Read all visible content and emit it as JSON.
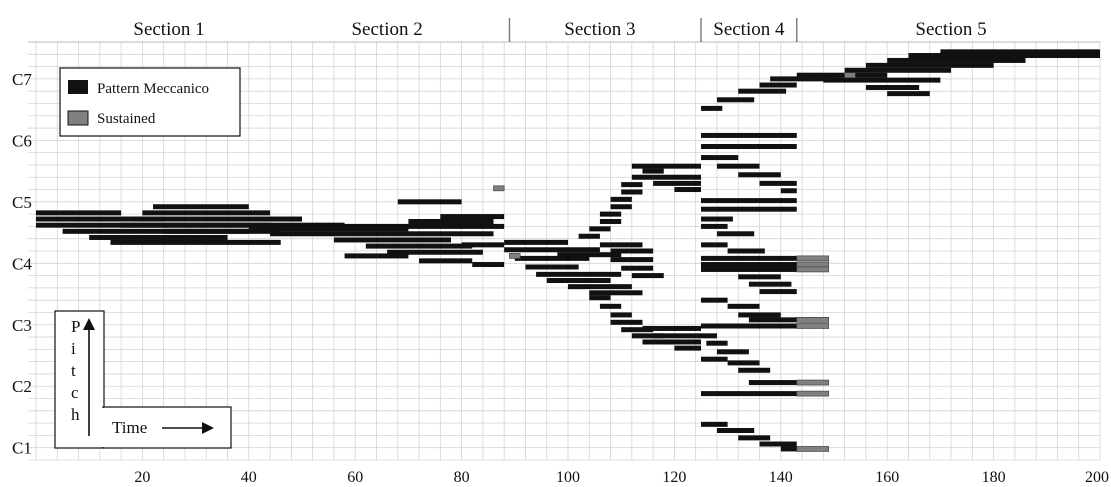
{
  "chart_data": {
    "type": "heatmap",
    "title": "",
    "xlabel": "Time",
    "ylabel": "Pitch",
    "xlim": [
      0,
      200
    ],
    "ylim": [
      0.8,
      7.6
    ],
    "x_ticks": [
      20,
      40,
      60,
      80,
      100,
      120,
      140,
      160,
      180,
      200
    ],
    "y_ticks": [
      {
        "label": "C1",
        "value": 1
      },
      {
        "label": "C2",
        "value": 2
      },
      {
        "label": "C3",
        "value": 3
      },
      {
        "label": "C4",
        "value": 4
      },
      {
        "label": "C5",
        "value": 5
      },
      {
        "label": "C6",
        "value": 6
      },
      {
        "label": "C7",
        "value": 7
      }
    ],
    "sections": [
      {
        "label": "Section 1",
        "start": 0,
        "end": 88
      },
      {
        "label": "Section 2",
        "start": 88,
        "end": 89
      },
      {
        "label": "Section 3",
        "start": 89,
        "end": 125
      },
      {
        "label": "Section 4",
        "start": 125,
        "end": 143
      },
      {
        "label": "Section 5",
        "start": 143,
        "end": 200
      }
    ],
    "grid": true,
    "legend": {
      "position": "top-left",
      "entries": [
        {
          "label": "Pattern Meccanico",
          "color": "#111111"
        },
        {
          "label": "Sustained",
          "color": "#808080"
        }
      ]
    },
    "series": [
      {
        "name": "Pattern Meccanico",
        "color": "#111111",
        "segments": [
          [
            0,
            16,
            4.82
          ],
          [
            0,
            24,
            4.72
          ],
          [
            0,
            30,
            4.62
          ],
          [
            5,
            40,
            4.52
          ],
          [
            10,
            36,
            4.42
          ],
          [
            14,
            46,
            4.34
          ],
          [
            16,
            44,
            4.62
          ],
          [
            18,
            50,
            4.72
          ],
          [
            20,
            44,
            4.82
          ],
          [
            22,
            40,
            4.92
          ],
          [
            24,
            46,
            4.52
          ],
          [
            30,
            58,
            4.62
          ],
          [
            40,
            70,
            4.56
          ],
          [
            44,
            86,
            4.48
          ],
          [
            46,
            88,
            4.6
          ],
          [
            56,
            78,
            4.38
          ],
          [
            62,
            82,
            4.28
          ],
          [
            66,
            84,
            4.18
          ],
          [
            58,
            70,
            4.12
          ],
          [
            70,
            86,
            4.68
          ],
          [
            76,
            88,
            4.76
          ],
          [
            72,
            82,
            4.04
          ],
          [
            80,
            88,
            4.3
          ],
          [
            82,
            88,
            3.98
          ],
          [
            68,
            80,
            5.0
          ],
          [
            86,
            88,
            5.22
          ],
          [
            88,
            100,
            4.34
          ],
          [
            88,
            106,
            4.22
          ],
          [
            90,
            104,
            4.08
          ],
          [
            92,
            102,
            3.94
          ],
          [
            94,
            110,
            3.82
          ],
          [
            96,
            108,
            3.72
          ],
          [
            100,
            112,
            3.62
          ],
          [
            98,
            110,
            4.14
          ],
          [
            104,
            114,
            3.52
          ],
          [
            102,
            106,
            4.44
          ],
          [
            104,
            108,
            4.56
          ],
          [
            106,
            110,
            4.68
          ],
          [
            106,
            110,
            4.8
          ],
          [
            108,
            112,
            4.92
          ],
          [
            108,
            112,
            5.04
          ],
          [
            110,
            114,
            5.16
          ],
          [
            110,
            114,
            5.28
          ],
          [
            112,
            116,
            5.4
          ],
          [
            114,
            118,
            5.5
          ],
          [
            116,
            125,
            5.4
          ],
          [
            116,
            125,
            5.3
          ],
          [
            120,
            125,
            5.2
          ],
          [
            112,
            125,
            5.58
          ],
          [
            104,
            108,
            3.44
          ],
          [
            106,
            110,
            3.3
          ],
          [
            108,
            112,
            3.16
          ],
          [
            108,
            114,
            3.04
          ],
          [
            110,
            116,
            2.92
          ],
          [
            112,
            118,
            2.82
          ],
          [
            114,
            120,
            2.72
          ],
          [
            116,
            125,
            2.82
          ],
          [
            118,
            125,
            2.72
          ],
          [
            120,
            125,
            2.62
          ],
          [
            114,
            125,
            2.94
          ],
          [
            106,
            114,
            4.3
          ],
          [
            108,
            116,
            4.2
          ],
          [
            108,
            116,
            4.06
          ],
          [
            110,
            116,
            3.92
          ],
          [
            112,
            118,
            3.8
          ],
          [
            125,
            129,
            6.52
          ],
          [
            128,
            135,
            6.66
          ],
          [
            132,
            141,
            6.8
          ],
          [
            136,
            143,
            6.9
          ],
          [
            138,
            150,
            7.0
          ],
          [
            143,
            160,
            7.06
          ],
          [
            152,
            172,
            7.14
          ],
          [
            156,
            180,
            7.22
          ],
          [
            160,
            186,
            7.3
          ],
          [
            164,
            200,
            7.38
          ],
          [
            170,
            200,
            7.44
          ],
          [
            148,
            170,
            6.98
          ],
          [
            156,
            166,
            6.86
          ],
          [
            160,
            168,
            6.76
          ],
          [
            125,
            143,
            6.08
          ],
          [
            125,
            143,
            5.9
          ],
          [
            125,
            132,
            5.72
          ],
          [
            128,
            136,
            5.58
          ],
          [
            132,
            140,
            5.44
          ],
          [
            136,
            143,
            5.3
          ],
          [
            140,
            143,
            5.18
          ],
          [
            125,
            143,
            5.02
          ],
          [
            125,
            143,
            4.88
          ],
          [
            125,
            131,
            4.72
          ],
          [
            125,
            130,
            4.6
          ],
          [
            128,
            135,
            4.48
          ],
          [
            125,
            130,
            4.3
          ],
          [
            130,
            137,
            4.2
          ],
          [
            125,
            143,
            4.08
          ],
          [
            125,
            143,
            3.98
          ],
          [
            125,
            143,
            3.9
          ],
          [
            132,
            140,
            3.78
          ],
          [
            134,
            142,
            3.66
          ],
          [
            136,
            143,
            3.54
          ],
          [
            125,
            130,
            3.4
          ],
          [
            130,
            136,
            3.3
          ],
          [
            132,
            140,
            3.16
          ],
          [
            134,
            143,
            3.08
          ],
          [
            125,
            143,
            2.98
          ],
          [
            125,
            128,
            2.82
          ],
          [
            126,
            130,
            2.7
          ],
          [
            128,
            134,
            2.56
          ],
          [
            125,
            130,
            2.44
          ],
          [
            130,
            136,
            2.38
          ],
          [
            132,
            138,
            2.26
          ],
          [
            134,
            143,
            2.06
          ],
          [
            125,
            143,
            1.88
          ],
          [
            125,
            130,
            1.38
          ],
          [
            128,
            135,
            1.28
          ],
          [
            132,
            138,
            1.16
          ],
          [
            136,
            143,
            1.06
          ],
          [
            140,
            143,
            0.98
          ]
        ]
      },
      {
        "name": "Sustained",
        "color": "#808080",
        "segments": [
          [
            86,
            88,
            5.22
          ],
          [
            89,
            91,
            4.12
          ],
          [
            152,
            154,
            7.06
          ],
          [
            143,
            149,
            4.08
          ],
          [
            143,
            149,
            3.98
          ],
          [
            143,
            149,
            3.9
          ],
          [
            143,
            149,
            3.08
          ],
          [
            143,
            149,
            2.98
          ],
          [
            143,
            149,
            2.06
          ],
          [
            143,
            149,
            1.88
          ],
          [
            143,
            149,
            0.98
          ]
        ]
      }
    ]
  }
}
